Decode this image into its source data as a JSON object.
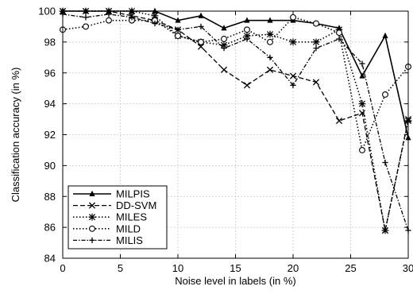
{
  "chart_data": {
    "type": "line",
    "title": "",
    "xlabel": "Noise level in labels (in %)",
    "ylabel": "Classification accuracy (in %)",
    "xlim": [
      0,
      30
    ],
    "ylim": [
      84,
      100
    ],
    "xticks": [
      0,
      5,
      10,
      15,
      20,
      25,
      30
    ],
    "yticks": [
      84,
      86,
      88,
      90,
      92,
      94,
      96,
      98,
      100
    ],
    "grid": true,
    "legend_position": "bottom-left",
    "x": [
      0,
      2,
      4,
      6,
      8,
      10,
      12,
      14,
      16,
      18,
      20,
      22,
      24,
      26,
      28,
      30
    ],
    "series": [
      {
        "name": "MILPIS",
        "marker": "triangle",
        "dash": "solid",
        "values": [
          100,
          100,
          100,
          100,
          100,
          99.4,
          99.7,
          98.9,
          99.4,
          99.4,
          99.4,
          99.2,
          98.9,
          95.8,
          98.4,
          91.8
        ]
      },
      {
        "name": "DD-SVM",
        "marker": "x",
        "dash": "dashed",
        "values": [
          100,
          100,
          100,
          99.7,
          99.4,
          98.8,
          97.7,
          96.2,
          95.2,
          96.2,
          95.8,
          95.4,
          92.9,
          93.4,
          85.8,
          93.0
        ]
      },
      {
        "name": "MILES",
        "marker": "asterisk",
        "dash": "dotted",
        "values": [
          100,
          100,
          100,
          100,
          99.7,
          98.4,
          98.0,
          97.8,
          98.4,
          98.5,
          98.0,
          98.0,
          98.8,
          94.0,
          85.8,
          92.9
        ]
      },
      {
        "name": "MILD",
        "marker": "circle",
        "dash": "dotted",
        "values": [
          98.8,
          99.0,
          99.4,
          99.4,
          99.4,
          98.4,
          98.0,
          98.2,
          98.8,
          98.0,
          99.6,
          99.2,
          98.6,
          91.0,
          94.6,
          96.4
        ]
      },
      {
        "name": "MILIS",
        "marker": "plus",
        "dash": "dashdot",
        "values": [
          99.8,
          99.6,
          99.8,
          99.6,
          99.2,
          98.8,
          99.0,
          97.6,
          98.2,
          97.0,
          95.2,
          97.6,
          98.2,
          96.6,
          90.2,
          85.8
        ]
      }
    ]
  }
}
